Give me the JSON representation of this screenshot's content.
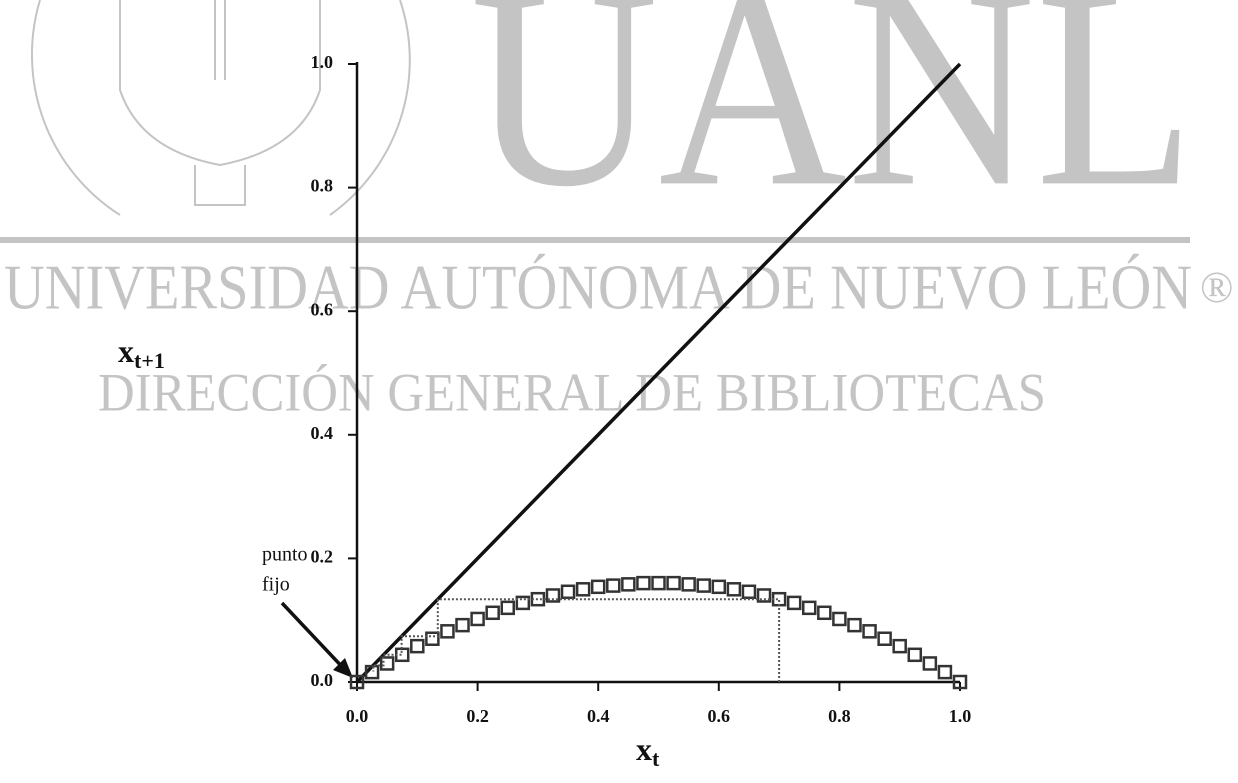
{
  "watermark": {
    "logo": "UANL",
    "university": "UNIVERSIDAD AUTÓNOMA DE NUEVO LEÓN",
    "mark": "®",
    "department": "DIRECCIÓN GENERAL DE BIBLIOTECAS"
  },
  "chart_data": {
    "type": "line",
    "xlabel": "x",
    "xlabel_sub": "t",
    "ylabel": "x",
    "ylabel_sub": "t+1",
    "annotation_lines": [
      "punto",
      "fijo"
    ],
    "xlim": [
      0,
      1
    ],
    "ylim": [
      0,
      1
    ],
    "xticks": [
      {
        "value": 0,
        "label": "0.0"
      },
      0.2,
      0.4,
      0.6,
      0.8,
      {
        "value": 1,
        "label": "1.0"
      }
    ],
    "yticks": [
      {
        "value": 0,
        "label": "0.0"
      },
      0.2,
      0.4,
      0.6,
      0.8,
      {
        "value": 1,
        "label": "1.0"
      }
    ],
    "series": [
      {
        "style": "line",
        "color": "#111111",
        "x": [
          0,
          1
        ],
        "values": [
          0,
          1
        ]
      },
      {
        "style": "square",
        "color": "#333333",
        "x": [
          0,
          0.025,
          0.05,
          0.075,
          0.1,
          0.125,
          0.15,
          0.175,
          0.2,
          0.225,
          0.25,
          0.275,
          0.3,
          0.325,
          0.35,
          0.375,
          0.4,
          0.425,
          0.45,
          0.475,
          0.5,
          0.525,
          0.55,
          0.575,
          0.6,
          0.625,
          0.65,
          0.675,
          0.7,
          0.725,
          0.75,
          0.775,
          0.8,
          0.825,
          0.85,
          0.875,
          0.9,
          0.925,
          0.95,
          0.975,
          1
        ],
        "values": [
          0,
          0.016,
          0.03,
          0.044,
          0.058,
          0.07,
          0.082,
          0.092,
          0.102,
          0.112,
          0.12,
          0.128,
          0.134,
          0.14,
          0.146,
          0.15,
          0.154,
          0.156,
          0.158,
          0.16,
          0.16,
          0.16,
          0.158,
          0.156,
          0.154,
          0.15,
          0.146,
          0.14,
          0.134,
          0.128,
          0.12,
          0.112,
          0.102,
          0.092,
          0.082,
          0.07,
          0.058,
          0.044,
          0.03,
          0.016,
          0
        ]
      },
      {
        "style": "dotted",
        "color": "#555555",
        "x": [
          0.7,
          0.7,
          0.134,
          0.134,
          0.074,
          0.074,
          0.044,
          0.044,
          0.027,
          0.027
        ],
        "values": [
          0,
          0.134,
          0.134,
          0.074,
          0.074,
          0.044,
          0.044,
          0.027,
          0.027,
          0.017
        ]
      }
    ]
  }
}
